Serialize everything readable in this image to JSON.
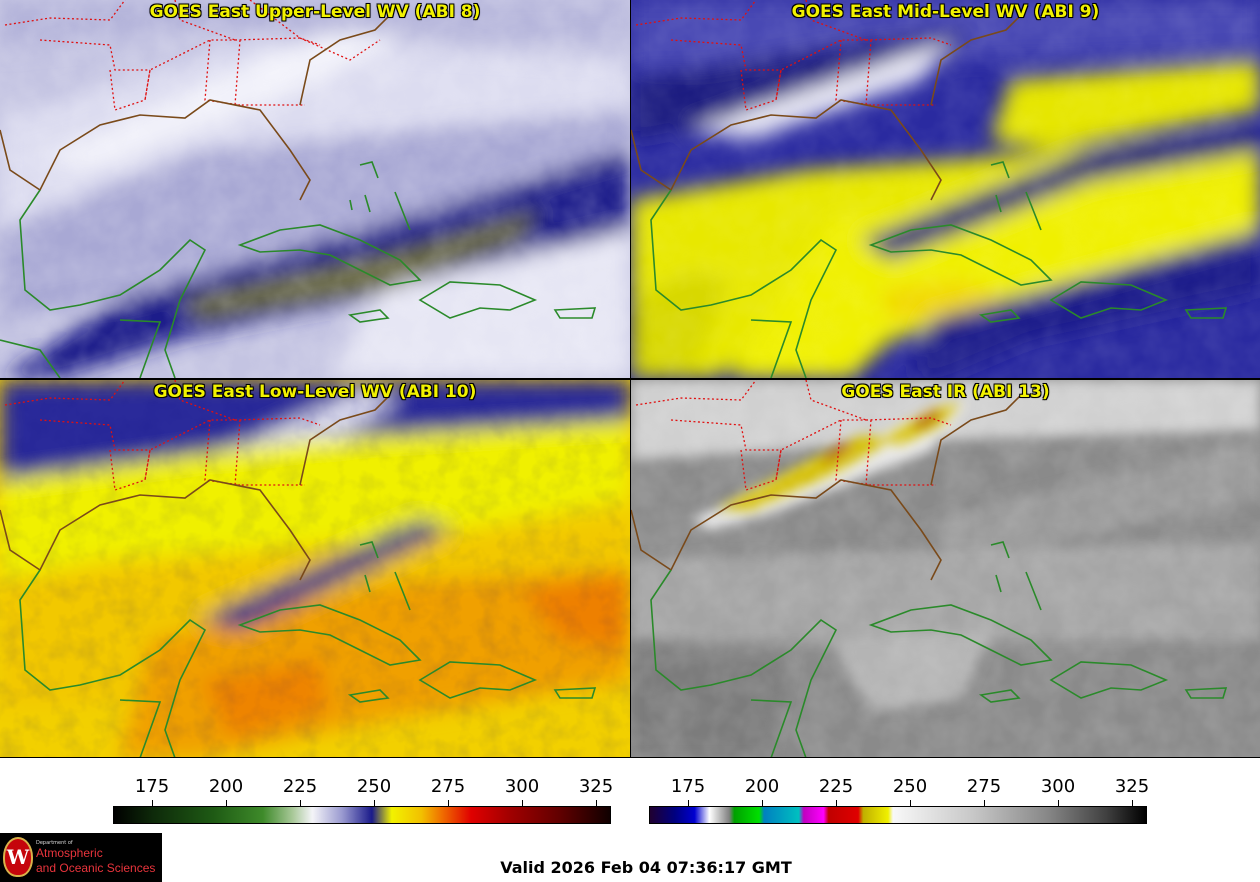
{
  "panels": [
    {
      "title": "GOES East Upper-Level WV (ABI 8)"
    },
    {
      "title": "GOES East Mid-Level WV (ABI 9)"
    },
    {
      "title": "GOES East Low-Level WV (ABI 10)"
    },
    {
      "title": "GOES East IR (ABI 13)"
    }
  ],
  "colorbars": {
    "wv": {
      "ticks": [
        "175",
        "200",
        "225",
        "250",
        "275",
        "300",
        "325"
      ]
    },
    "ir": {
      "ticks": [
        "175",
        "200",
        "225",
        "250",
        "275",
        "300",
        "325"
      ]
    }
  },
  "logo": {
    "dept": "Department of",
    "line1": "Atmospheric",
    "line2": "and Oceanic Sciences",
    "seal": "W"
  },
  "valid_time": "Valid 2026 Feb 04 07:36:17 GMT",
  "colors": {
    "state_borders": "#e01010",
    "coastlines": "#1a8a1a",
    "title_text": "#f2f200"
  }
}
